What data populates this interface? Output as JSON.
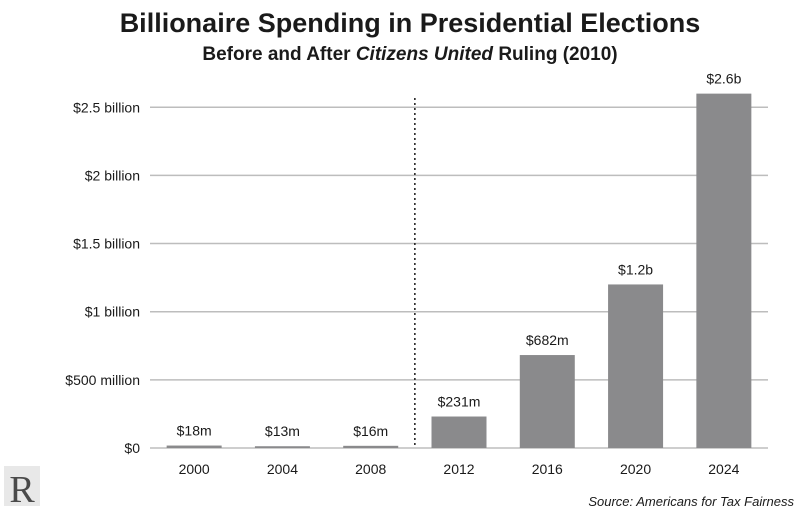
{
  "chart_data": {
    "type": "bar",
    "title": "Billionaire Spending in Presidential Elections",
    "subtitle": {
      "before": "Before and After ",
      "italic": "Citizens United",
      "after": " Ruling (2010)"
    },
    "categories": [
      "2000",
      "2004",
      "2008",
      "2012",
      "2016",
      "2020",
      "2024"
    ],
    "values_millions": [
      18,
      13,
      16,
      231,
      682,
      1200,
      2600
    ],
    "data_labels": [
      "$18m",
      "$13m",
      "$16m",
      "$231m",
      "$682m",
      "$1.2b",
      "$2.6b"
    ],
    "y_ticks": [
      {
        "value": 0,
        "label": "$0"
      },
      {
        "value": 500,
        "label": "$500 million"
      },
      {
        "value": 1000,
        "label": "$1 billion"
      },
      {
        "value": 1500,
        "label": "$1.5 billion"
      },
      {
        "value": 2000,
        "label": "$2 billion"
      },
      {
        "value": 2500,
        "label": "$2.5 billion"
      }
    ],
    "ylim": [
      0,
      2700
    ],
    "grid": true,
    "divider_after_category": "2008",
    "source": "Source: Americans for Tax Fairness",
    "colors": {
      "bar": "#8a8a8c",
      "grid": "#bdbdbd",
      "text": "#1a1a1a"
    }
  },
  "logo": {
    "letter": "R"
  }
}
